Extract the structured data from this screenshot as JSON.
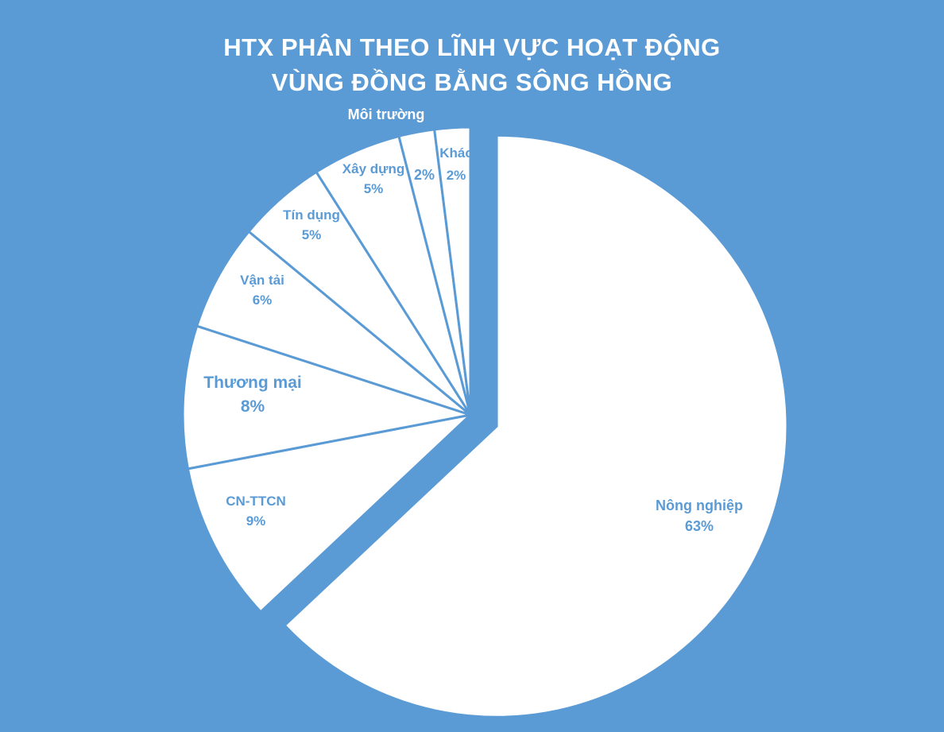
{
  "chart_data": {
    "type": "pie",
    "title": "HTX PHÂN THEO LĨNH VỰC HOẠT ĐỘNG",
    "subtitle": "VÙNG ĐỒNG BẰNG SÔNG HỒNG",
    "categories": [
      "Nông nghiệp",
      "CN-TTCN",
      "Thương mại",
      "Vận tải",
      "Tín dụng",
      "Xây dựng",
      "Môi trường",
      "Khác"
    ],
    "values": [
      63,
      9,
      8,
      6,
      5,
      5,
      2,
      2
    ],
    "data_labels": [
      "63%",
      "9%",
      "8%",
      "6%",
      "5%",
      "5%",
      "2%",
      "2%"
    ],
    "exploded": [
      "Nông nghiệp"
    ],
    "start_angle": "12 o'clock, clockwise",
    "colors": {
      "background": "#5b9bd5",
      "slice_fill": "#ffffff",
      "slice_border": "#5b9bd5",
      "label": "#5b9bd5",
      "title": "#ffffff"
    }
  }
}
